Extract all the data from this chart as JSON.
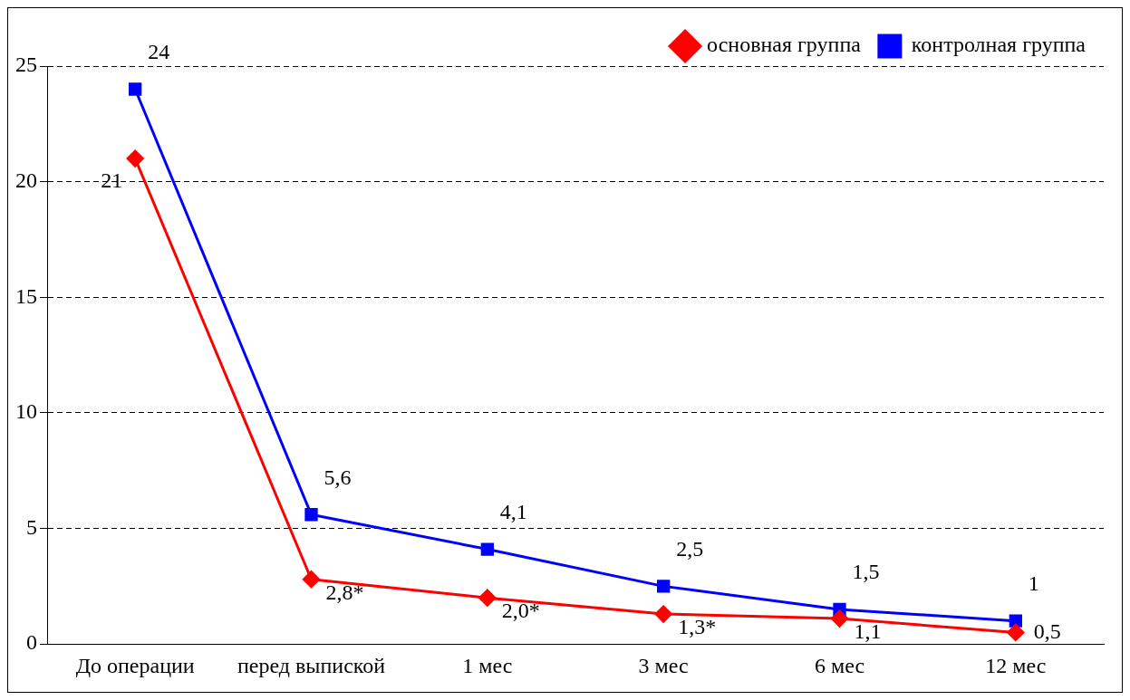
{
  "chart_data": {
    "type": "line",
    "categories": [
      "До операции",
      "перед выпиской",
      "1 мес",
      "3 мес",
      "6 мес",
      "12 мес"
    ],
    "series": [
      {
        "name": "основная группа",
        "color": "#ff0000",
        "marker": "diamond",
        "values": [
          21,
          2.8,
          2.0,
          1.3,
          1.1,
          0.5
        ],
        "value_labels": [
          "21",
          "2,8*",
          "2,0*",
          "1,3*",
          "1,1",
          "0,5"
        ]
      },
      {
        "name": "контролная группа",
        "color": "#0000ff",
        "marker": "square",
        "values": [
          24,
          5.6,
          4.1,
          2.5,
          1.5,
          1
        ],
        "value_labels": [
          "24",
          "5,6",
          "4,1",
          "2,5",
          "1,5",
          "1"
        ]
      }
    ],
    "ylim": [
      0,
      25
    ],
    "yticks": [
      0,
      5,
      10,
      15,
      20,
      25
    ],
    "grid": "y",
    "legend": "top right",
    "line_style": "solid"
  }
}
